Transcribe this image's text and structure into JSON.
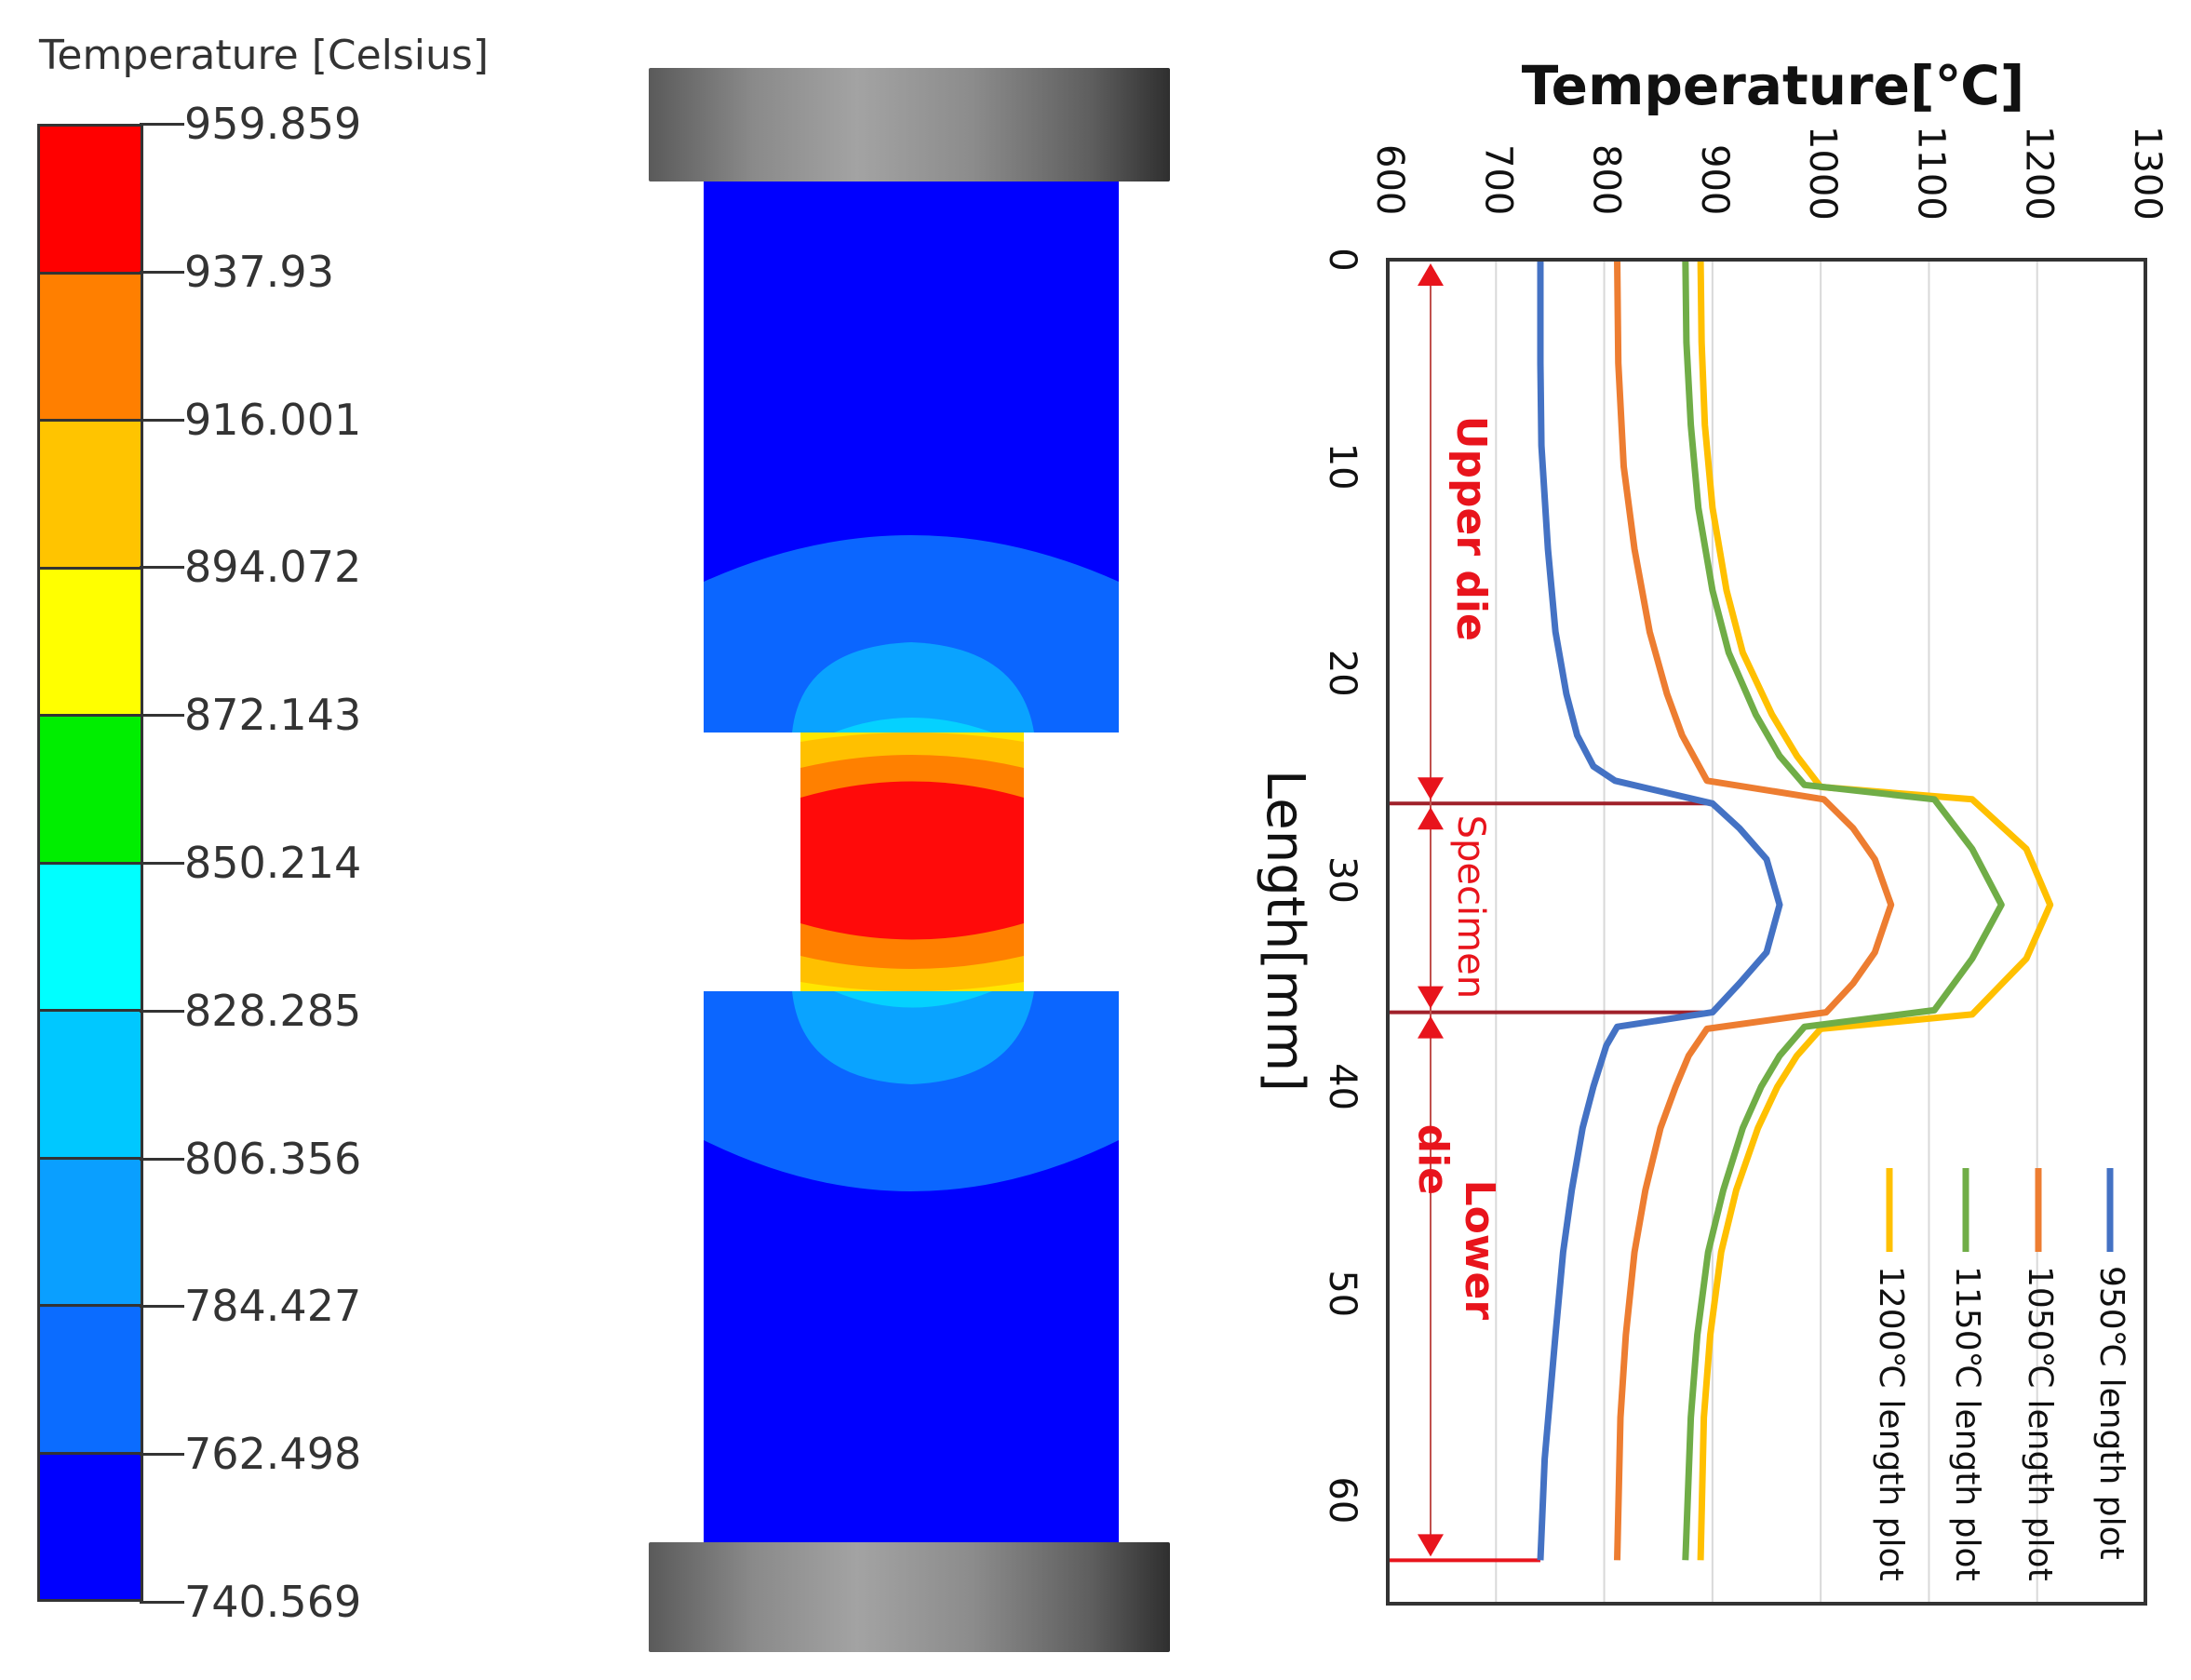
{
  "colorbar": {
    "title": "Temperature [Celsius]",
    "labels": [
      "959.859",
      "937.93",
      "916.001",
      "894.072",
      "872.143",
      "850.214",
      "828.285",
      "806.356",
      "784.427",
      "762.498",
      "740.569"
    ],
    "band_colors": [
      "#ff0000",
      "#ff7f00",
      "#ffc400",
      "#ffff00",
      "#00ee00",
      "#00ffff",
      "#00c8ff",
      "#0a9fff",
      "#0b6cff",
      "#0000ff"
    ]
  },
  "figure": {
    "die_cap_color": "#8a8a8a",
    "die_colors": {
      "cold": "#0000ff",
      "mid": "#0b66ff",
      "warm": "#0aa3ff"
    },
    "specimen_colors": {
      "yellow": "#ffe600",
      "gold": "#ffc000",
      "orange": "#ff8000",
      "red": "#ff0a0a"
    }
  },
  "chart_data": {
    "type": "line",
    "orientation": "rotated (temperature on top x-axis, length on left y-axis increasing downward)",
    "title": "Temperature[℃]",
    "xlabel": "Temperature[℃]",
    "ylabel": "Length[mm]",
    "xlim": [
      600,
      1300
    ],
    "ylim": [
      0,
      65
    ],
    "x_ticks": [
      600,
      700,
      800,
      900,
      1000,
      1100,
      1200,
      1300
    ],
    "y_ticks": [
      0,
      10,
      20,
      30,
      40,
      50,
      60
    ],
    "grid": "vertical gridlines at each x tick",
    "legend_position": "lower right (rotated)",
    "annotations": [
      {
        "text": "Upper die",
        "from_mm": 0,
        "to_mm": 26.3,
        "color": "#e8141c"
      },
      {
        "text": "Specimen",
        "from_mm": 26.3,
        "to_mm": 36.4,
        "color": "#e8141c"
      },
      {
        "text": "Lower die",
        "from_mm": 36.4,
        "to_mm": 62.9,
        "color": "#e8141c"
      }
    ],
    "series": [
      {
        "name": "950℃  length plot",
        "color": "#4472c4",
        "length_mm": [
          0,
          5,
          9,
          14,
          18,
          21,
          23,
          24.5,
          25.2,
          26.3,
          27.5,
          29,
          31.2,
          33.5,
          35,
          36.4,
          37.1,
          38,
          40,
          42,
          45,
          48,
          52,
          55,
          58,
          62.9
        ],
        "temperature_c": [
          741,
          741,
          742,
          748,
          755,
          765,
          775,
          790,
          810,
          900,
          925,
          950,
          962,
          950,
          925,
          900,
          812,
          802,
          790,
          780,
          770,
          762,
          755,
          750,
          745,
          741
        ]
      },
      {
        "name": "1050℃ length plot",
        "color": "#ed7d31",
        "length_mm": [
          0,
          5,
          10,
          14,
          18,
          21,
          23,
          25.2,
          26.1,
          27.5,
          29,
          31.2,
          33.5,
          35,
          36.4,
          37.2,
          38.5,
          40,
          42,
          45,
          48,
          52,
          56,
          62.9
        ],
        "temperature_c": [
          812,
          813,
          818,
          828,
          842,
          858,
          872,
          895,
          1003,
          1030,
          1050,
          1065,
          1050,
          1030,
          1005,
          895,
          878,
          866,
          852,
          838,
          828,
          820,
          815,
          812
        ]
      },
      {
        "name": "1150℃ length plot",
        "color": "#70ad47",
        "length_mm": [
          0,
          4,
          8,
          12,
          16,
          19,
          22,
          24,
          25.4,
          26.1,
          28.5,
          31.2,
          33.8,
          36.3,
          37.1,
          38.5,
          40,
          42,
          45,
          48,
          52,
          56,
          62.9
        ],
        "temperature_c": [
          875,
          876,
          880,
          887,
          900,
          915,
          940,
          962,
          985,
          1105,
          1140,
          1167,
          1140,
          1105,
          985,
          962,
          945,
          928,
          910,
          896,
          886,
          880,
          875
        ]
      },
      {
        "name": "1200℃ length plot",
        "color": "#ffc000",
        "length_mm": [
          0,
          4,
          8,
          12,
          16,
          19,
          22,
          24,
          25.5,
          26.1,
          28.5,
          31.2,
          33.8,
          36.5,
          37.2,
          38.5,
          40,
          42,
          45,
          48,
          52,
          56,
          62.9
        ],
        "temperature_c": [
          889,
          890,
          893,
          900,
          913,
          928,
          955,
          978,
          1000,
          1140,
          1190,
          1212,
          1190,
          1140,
          1000,
          978,
          960,
          942,
          922,
          908,
          898,
          892,
          889
        ]
      }
    ]
  }
}
